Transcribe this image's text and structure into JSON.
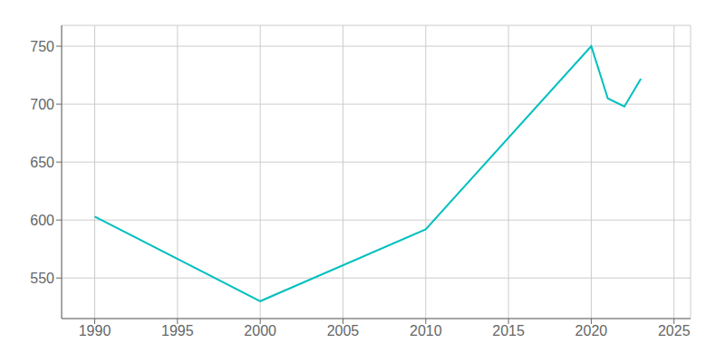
{
  "chart_data": {
    "type": "line",
    "x": [
      1990,
      2000,
      2010,
      2020,
      2021,
      2022,
      2023
    ],
    "values": [
      603,
      530,
      592,
      750,
      705,
      698,
      722
    ],
    "color": "#00BFBF",
    "xlim": [
      1988,
      2026
    ],
    "ylim": [
      515,
      768
    ],
    "xticks": [
      1990,
      1995,
      2000,
      2005,
      2010,
      2015,
      2020,
      2025
    ],
    "yticks": [
      550,
      600,
      650,
      700,
      750
    ],
    "grid": true
  }
}
